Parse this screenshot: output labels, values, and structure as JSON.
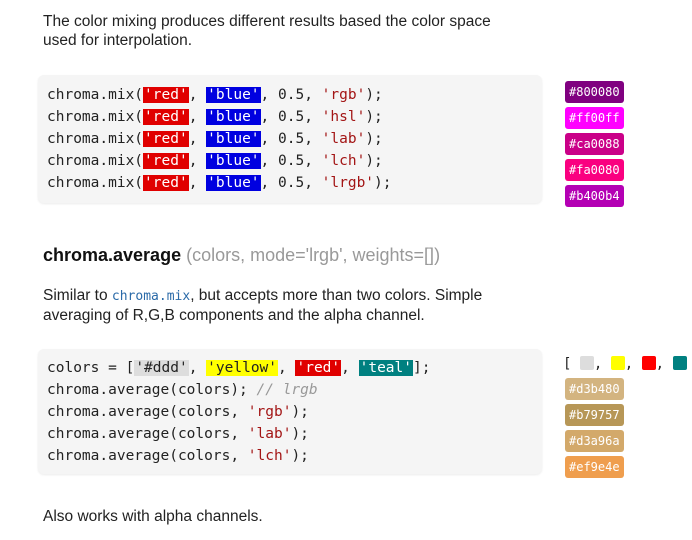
{
  "intro_text": "The color mixing produces different results based the color space used for interpolation.",
  "mix": {
    "lines": [
      {
        "pre": "chroma.mix(",
        "a": "'red'",
        "sep": ", ",
        "b": "'blue'",
        "mid": ", 0.5, ",
        "mode": "'rgb'",
        "end": ");"
      },
      {
        "pre": "chroma.mix(",
        "a": "'red'",
        "sep": ", ",
        "b": "'blue'",
        "mid": ", 0.5, ",
        "mode": "'hsl'",
        "end": ");"
      },
      {
        "pre": "chroma.mix(",
        "a": "'red'",
        "sep": ", ",
        "b": "'blue'",
        "mid": ", 0.5, ",
        "mode": "'lab'",
        "end": ");"
      },
      {
        "pre": "chroma.mix(",
        "a": "'red'",
        "sep": ", ",
        "b": "'blue'",
        "mid": ", 0.5, ",
        "mode": "'lch'",
        "end": ");"
      },
      {
        "pre": "chroma.mix(",
        "a": "'red'",
        "sep": ", ",
        "b": "'blue'",
        "mid": ", 0.5, ",
        "mode": "'lrgb'",
        "end": ");"
      }
    ],
    "results": [
      {
        "label": "#800080",
        "color": "#800080"
      },
      {
        "label": "#ff00ff",
        "color": "#ff00ff"
      },
      {
        "label": "#ca0088",
        "color": "#ca0088"
      },
      {
        "label": "#fa0080",
        "color": "#fa0080"
      },
      {
        "label": "#b400b4",
        "color": "#b400b4"
      }
    ]
  },
  "average": {
    "fn_name": "chroma.average",
    "signature": " (colors, mode='lrgb', weights=[])",
    "desc_before": "Similar to ",
    "desc_code": "chroma.mix",
    "desc_after": ", but accepts more than two colors. Simple averaging of R,G,B components and the alpha channel.",
    "line0": {
      "pre": "colors = [",
      "c1": "'#ddd'",
      "s1": ", ",
      "c2": "'yellow'",
      "s2": ", ",
      "c3": "'red'",
      "s3": ", ",
      "c4": "'teal'",
      "end": "];"
    },
    "line1": {
      "code": "chroma.average(colors); ",
      "comment": "// lrgb"
    },
    "line2": {
      "pre": "chroma.average(colors, ",
      "mode": "'rgb'",
      "end": ");"
    },
    "line3": {
      "pre": "chroma.average(colors, ",
      "mode": "'lab'",
      "end": ");"
    },
    "line4": {
      "pre": "chroma.average(colors, ",
      "mode": "'lch'",
      "end": ");"
    },
    "palette_open": "[",
    "palette_sep": ",",
    "palette_close": "]",
    "palette": [
      "#dddddd",
      "#ffff00",
      "#ff0000",
      "#008080"
    ],
    "results": [
      {
        "label": "#d3b480",
        "color": "#d3b480"
      },
      {
        "label": "#b79757",
        "color": "#b79757"
      },
      {
        "label": "#d3a96a",
        "color": "#d3a96a"
      },
      {
        "label": "#ef9e4e",
        "color": "#ef9e4e"
      }
    ]
  },
  "alpha_text": "Also works with alpha channels."
}
